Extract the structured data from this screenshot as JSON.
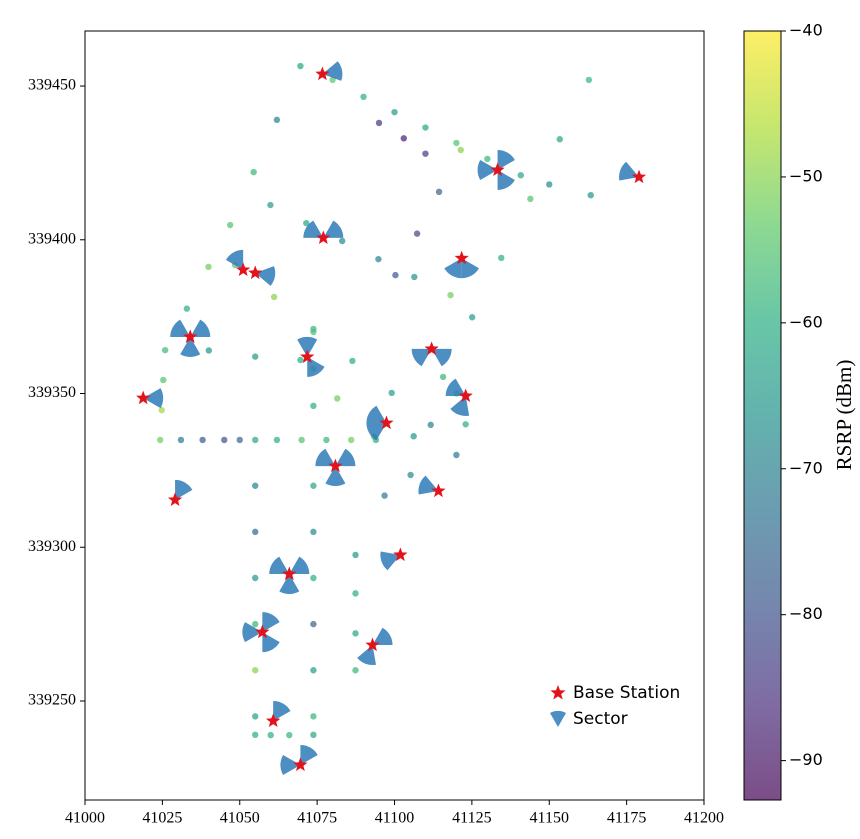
{
  "chart_data": {
    "type": "scatter",
    "xlim": [
      41000,
      41200
    ],
    "ylim": [
      339217.8,
      339467.9
    ],
    "xticks": [
      41000,
      41025,
      41050,
      41075,
      41100,
      41125,
      41150,
      41175,
      41200
    ],
    "yticks": [
      339250,
      339300,
      339350,
      339400,
      339450
    ],
    "legend": "lower right",
    "points": {
      "alpha": 0.7,
      "x": [
        41069.6,
        41062,
        41054.5,
        41046.9,
        41039.9,
        41032.9,
        41025.9,
        41025.3,
        41024.8,
        41024.3,
        41031,
        41038,
        41045,
        41050,
        41055,
        41062,
        41070,
        41078,
        41086,
        41094,
        41055,
        41055,
        41055,
        41055,
        41055,
        41055,
        41055,
        41073.8,
        41073.8,
        41073.8,
        41073.8,
        41073.8,
        41073.8,
        41073.8,
        41060,
        41066,
        41162.8,
        41153.4,
        41143.9,
        41134.5,
        41125.1,
        41115.7,
        41106.2,
        41096.8,
        41087.4,
        41087.4,
        41087.4,
        41087.4,
        41080,
        41090,
        41100,
        41110,
        41120,
        41130,
        41140.8,
        41150,
        41163.4,
        41095,
        41103,
        41110,
        41059.9,
        41071.5,
        41083.1,
        41094.8,
        41106.4,
        41118.1,
        41048.5,
        41061.1,
        41073.8,
        41086.4,
        41099.1,
        41111.7,
        41040,
        41055,
        41069.6,
        41081.5,
        41093.4,
        41105.2,
        41121.4,
        41114.4,
        41107.3,
        41100.3,
        41073.8,
        41073.8,
        41073.8,
        41120,
        41123,
        41120
      ],
      "y": [
        339456.5,
        339439,
        339422,
        339404.8,
        339391.2,
        339377.6,
        339364.1,
        339354.4,
        339344.6,
        339334.9,
        339334.9,
        339334.9,
        339334.9,
        339334.9,
        339334.9,
        339334.9,
        339334.9,
        339334.9,
        339334.9,
        339334.9,
        339320,
        339305,
        339290,
        339275,
        339260,
        339245,
        339239,
        339320,
        339305,
        339290,
        339275,
        339260,
        339245,
        339239,
        339238.9,
        339238.9,
        339452,
        339432.7,
        339413.3,
        339394.1,
        339374.8,
        339355.4,
        339336.1,
        339316.8,
        339297.5,
        339285,
        339272,
        339260,
        339452,
        339446.5,
        339441.5,
        339436.5,
        339431.5,
        339426.3,
        339421,
        339418,
        339414.5,
        339438,
        339433,
        339428,
        339411.3,
        339405.4,
        339399.6,
        339393.7,
        339387.9,
        339382,
        339391.8,
        339381.4,
        339371,
        339360.6,
        339350.2,
        339339.8,
        339364,
        339362,
        339360.9,
        339348.4,
        339336,
        339323.5,
        339429.2,
        339415.6,
        339402,
        339388.5,
        339370,
        339358,
        339346,
        339350,
        339340,
        339330
      ],
      "values": [
        -62,
        -70,
        -58,
        -55,
        -52,
        -60,
        -57,
        -55,
        -48,
        -52,
        -72,
        -78,
        -80,
        -76,
        -62,
        -60,
        -55,
        -58,
        -52,
        -60,
        -70,
        -75,
        -66,
        -58,
        -50,
        -63,
        -60,
        -62,
        -68,
        -60,
        -76,
        -64,
        -58,
        -62,
        -60,
        -58,
        -58,
        -62,
        -55,
        -60,
        -64,
        -58,
        -66,
        -72,
        -65,
        -60,
        -62,
        -58,
        -54,
        -60,
        -65,
        -62,
        -55,
        -58,
        -62,
        -68,
        -66,
        -85,
        -88,
        -84,
        -64,
        -62,
        -68,
        -70,
        -66,
        -52,
        -55,
        -50,
        -58,
        -60,
        -64,
        -70,
        -66,
        -64,
        -60,
        -52,
        -56,
        -68,
        -50,
        -76,
        -82,
        -78,
        -56,
        -52,
        -60,
        -54,
        -60,
        -72
      ]
    },
    "series": [
      {
        "name": "Base Station",
        "color": "#e3121b",
        "x": [
          41076.7,
          41133.3,
          41179,
          41077,
          41121.7,
          41051.1,
          41055,
          41034,
          41071.8,
          41112,
          41018.8,
          41123,
          41097.4,
          41080.9,
          41114.2,
          41029.1,
          41101.9,
          41066,
          41057.3,
          41092.9,
          41060.8,
          41069.6
        ],
        "y": [
          339453.9,
          339422.7,
          339420.4,
          339400.6,
          339394,
          339390.2,
          339389.2,
          339368.4,
          339361.9,
          339364.5,
          339348.5,
          339349.2,
          339340.4,
          339326.4,
          339318.3,
          339315.4,
          339297.5,
          339291.3,
          339272.4,
          339268.2,
          339243.5,
          339229.2
        ]
      },
      {
        "name": "Sector",
        "color": "#2e7ab8",
        "x": [
          41076.7,
          41133.3,
          41133.3,
          41133.3,
          41179,
          41077,
          41077,
          41121.7,
          41121.7,
          41051.1,
          41055,
          41034,
          41034,
          41034,
          41071.8,
          41071.8,
          41112,
          41112,
          41018.8,
          41123,
          41123,
          41097.4,
          41097.4,
          41080.9,
          41080.9,
          41080.9,
          41114.2,
          41029.1,
          41101.9,
          41066,
          41066,
          41066,
          41057.3,
          41057.3,
          41057.3,
          41092.9,
          41092.9,
          41060.8,
          41069.6,
          41069.6
        ],
        "y": [
          339453.9,
          339422.7,
          339422.7,
          339422.7,
          339420.4,
          339400.6,
          339400.6,
          339394,
          339394,
          339390.2,
          339389.2,
          339368.4,
          339368.4,
          339368.4,
          339361.9,
          339361.9,
          339364.5,
          339364.5,
          339348.5,
          339349.2,
          339349.2,
          339340.4,
          339340.4,
          339326.4,
          339326.4,
          339326.4,
          339318.3,
          339315.4,
          339297.5,
          339291.3,
          339291.3,
          339291.3,
          339272.4,
          339272.4,
          339272.4,
          339268.2,
          339268.2,
          339243.5,
          339229.2,
          339229.2
        ],
        "azimuth": [
          80,
          30,
          150,
          270,
          290,
          60,
          300,
          150,
          210,
          330,
          100,
          60,
          180,
          300,
          0,
          150,
          240,
          120,
          90,
          300,
          200,
          300,
          240,
          300,
          60,
          180,
          290,
          30,
          250,
          300,
          60,
          180,
          30,
          150,
          270,
          60,
          200,
          30,
          30,
          270
        ]
      }
    ],
    "colorbar": {
      "label": "RSRP (dBm)",
      "colormap": "viridis",
      "lim": [
        -92.7,
        -40
      ],
      "ticks": [
        {
          "value": -40,
          "label": "−40"
        },
        {
          "value": -50,
          "label": "−50"
        },
        {
          "value": -60,
          "label": "−60"
        },
        {
          "value": -70,
          "label": "−70"
        },
        {
          "value": -80,
          "label": "−80"
        },
        {
          "value": -90,
          "label": "−90"
        }
      ]
    }
  }
}
